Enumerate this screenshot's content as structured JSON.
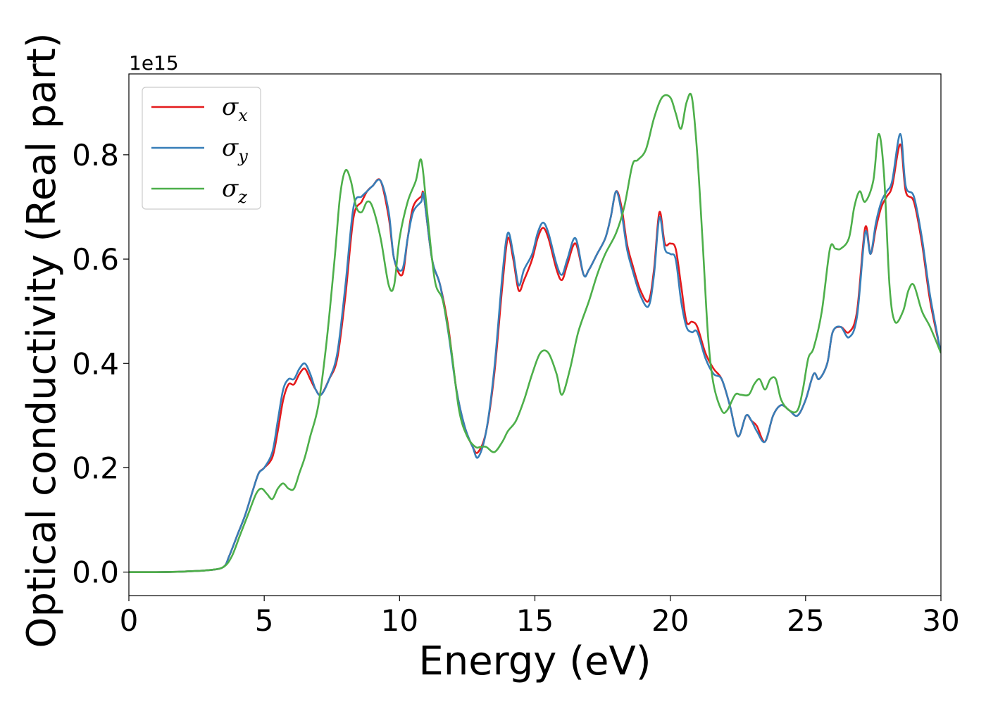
{
  "chart_data": {
    "type": "line",
    "title": "",
    "xlabel": "Energy (eV)",
    "ylabel": "Optical conductivity (Real part)",
    "y_offset_label": "1e15",
    "xlim": [
      0,
      30
    ],
    "ylim": [
      -0.045,
      0.955
    ],
    "xticks": [
      0,
      5,
      10,
      15,
      20,
      25,
      30
    ],
    "xtick_labels": [
      "0",
      "5",
      "10",
      "15",
      "20",
      "25",
      "30"
    ],
    "yticks": [
      0.0,
      0.2,
      0.4,
      0.6,
      0.8
    ],
    "ytick_labels": [
      "0.0",
      "0.2",
      "0.4",
      "0.6",
      "0.8"
    ],
    "grid": false,
    "legend_position": "upper-left",
    "series": [
      {
        "name": "σx",
        "legend_symbol": "σ",
        "legend_sub": "x",
        "color": "#e41a1c",
        "x": [
          0,
          1,
          2,
          3,
          3.5,
          3.7,
          4.0,
          4.3,
          4.6,
          4.8,
          5.0,
          5.3,
          5.5,
          5.7,
          5.9,
          6.1,
          6.3,
          6.5,
          6.7,
          6.9,
          7.1,
          7.4,
          7.7,
          8.0,
          8.3,
          8.6,
          8.8,
          9.0,
          9.3,
          9.6,
          9.8,
          10.1,
          10.3,
          10.5,
          10.8,
          10.9,
          11.2,
          11.5,
          11.8,
          12.1,
          12.4,
          12.7,
          12.9,
          13.2,
          13.5,
          13.8,
          14.0,
          14.2,
          14.4,
          14.6,
          14.9,
          15.1,
          15.3,
          15.5,
          15.8,
          16.0,
          16.2,
          16.5,
          16.8,
          17.0,
          17.3,
          17.6,
          17.8,
          18.0,
          18.2,
          18.4,
          18.6,
          18.9,
          19.2,
          19.4,
          19.6,
          19.8,
          20.0,
          20.2,
          20.4,
          20.6,
          20.8,
          21.0,
          21.3,
          21.6,
          21.9,
          22.2,
          22.5,
          22.8,
          23.0,
          23.2,
          23.5,
          23.8,
          24.1,
          24.4,
          24.7,
          25.0,
          25.3,
          25.5,
          25.8,
          26.0,
          26.3,
          26.6,
          26.9,
          27.2,
          27.4,
          27.6,
          27.8,
          28.0,
          28.2,
          28.5,
          28.7,
          29.0,
          29.3,
          29.6,
          30.0
        ],
        "values": [
          0.0,
          0.0,
          0.001,
          0.004,
          0.01,
          0.03,
          0.07,
          0.11,
          0.16,
          0.19,
          0.2,
          0.22,
          0.27,
          0.33,
          0.36,
          0.36,
          0.38,
          0.39,
          0.37,
          0.35,
          0.34,
          0.37,
          0.41,
          0.53,
          0.68,
          0.71,
          0.73,
          0.74,
          0.75,
          0.68,
          0.6,
          0.57,
          0.64,
          0.7,
          0.72,
          0.72,
          0.6,
          0.55,
          0.47,
          0.35,
          0.28,
          0.24,
          0.23,
          0.27,
          0.38,
          0.55,
          0.64,
          0.6,
          0.54,
          0.56,
          0.6,
          0.64,
          0.66,
          0.64,
          0.58,
          0.56,
          0.59,
          0.63,
          0.57,
          0.58,
          0.61,
          0.64,
          0.68,
          0.73,
          0.7,
          0.63,
          0.59,
          0.54,
          0.52,
          0.58,
          0.69,
          0.63,
          0.63,
          0.62,
          0.55,
          0.48,
          0.48,
          0.47,
          0.42,
          0.39,
          0.37,
          0.32,
          0.26,
          0.3,
          0.29,
          0.28,
          0.25,
          0.3,
          0.32,
          0.31,
          0.3,
          0.33,
          0.38,
          0.37,
          0.4,
          0.46,
          0.47,
          0.46,
          0.5,
          0.66,
          0.61,
          0.66,
          0.7,
          0.72,
          0.74,
          0.82,
          0.73,
          0.71,
          0.63,
          0.52,
          0.42
        ]
      },
      {
        "name": "σy",
        "legend_symbol": "σ",
        "legend_sub": "y",
        "color": "#377eb8",
        "x": [
          0,
          1,
          2,
          3,
          3.5,
          3.7,
          4.0,
          4.3,
          4.6,
          4.8,
          5.0,
          5.3,
          5.5,
          5.7,
          5.9,
          6.1,
          6.3,
          6.5,
          6.7,
          6.9,
          7.1,
          7.4,
          7.7,
          8.0,
          8.3,
          8.6,
          8.8,
          9.0,
          9.3,
          9.6,
          9.8,
          10.1,
          10.3,
          10.5,
          10.8,
          10.9,
          11.2,
          11.5,
          11.8,
          12.1,
          12.4,
          12.7,
          12.9,
          13.2,
          13.5,
          13.8,
          14.0,
          14.2,
          14.4,
          14.6,
          14.9,
          15.1,
          15.3,
          15.5,
          15.8,
          16.0,
          16.2,
          16.5,
          16.8,
          17.0,
          17.3,
          17.6,
          17.8,
          18.0,
          18.2,
          18.4,
          18.6,
          18.9,
          19.2,
          19.4,
          19.6,
          19.8,
          20.0,
          20.2,
          20.4,
          20.6,
          20.8,
          21.0,
          21.3,
          21.6,
          21.9,
          22.2,
          22.5,
          22.8,
          23.0,
          23.2,
          23.5,
          23.8,
          24.1,
          24.4,
          24.7,
          25.0,
          25.3,
          25.5,
          25.8,
          26.0,
          26.3,
          26.6,
          26.9,
          27.2,
          27.4,
          27.6,
          27.8,
          28.0,
          28.2,
          28.5,
          28.7,
          29.0,
          29.3,
          29.6,
          30.0
        ],
        "values": [
          0.0,
          0.0,
          0.001,
          0.004,
          0.01,
          0.03,
          0.07,
          0.11,
          0.16,
          0.19,
          0.2,
          0.23,
          0.29,
          0.35,
          0.37,
          0.37,
          0.39,
          0.4,
          0.38,
          0.35,
          0.34,
          0.37,
          0.42,
          0.55,
          0.7,
          0.72,
          0.73,
          0.74,
          0.75,
          0.69,
          0.6,
          0.58,
          0.64,
          0.69,
          0.71,
          0.72,
          0.6,
          0.55,
          0.46,
          0.35,
          0.28,
          0.24,
          0.22,
          0.27,
          0.39,
          0.57,
          0.65,
          0.61,
          0.55,
          0.58,
          0.61,
          0.65,
          0.67,
          0.65,
          0.59,
          0.57,
          0.6,
          0.64,
          0.57,
          0.58,
          0.61,
          0.64,
          0.68,
          0.73,
          0.69,
          0.62,
          0.58,
          0.53,
          0.51,
          0.57,
          0.68,
          0.62,
          0.61,
          0.6,
          0.52,
          0.47,
          0.46,
          0.46,
          0.41,
          0.38,
          0.37,
          0.32,
          0.26,
          0.3,
          0.29,
          0.27,
          0.25,
          0.3,
          0.32,
          0.31,
          0.3,
          0.33,
          0.38,
          0.37,
          0.4,
          0.46,
          0.47,
          0.45,
          0.49,
          0.65,
          0.61,
          0.67,
          0.71,
          0.73,
          0.75,
          0.84,
          0.74,
          0.72,
          0.64,
          0.53,
          0.42
        ]
      },
      {
        "name": "σz",
        "legend_symbol": "σ",
        "legend_sub": "z",
        "color": "#4daf4a",
        "x": [
          0,
          1,
          2,
          3,
          3.5,
          3.8,
          4.1,
          4.4,
          4.7,
          4.9,
          5.1,
          5.3,
          5.5,
          5.7,
          5.9,
          6.1,
          6.3,
          6.5,
          6.7,
          7.0,
          7.3,
          7.6,
          7.8,
          8.0,
          8.2,
          8.4,
          8.6,
          8.8,
          9.0,
          9.3,
          9.6,
          9.8,
          10.0,
          10.3,
          10.6,
          10.8,
          11.0,
          11.3,
          11.6,
          11.9,
          12.2,
          12.5,
          12.8,
          13.0,
          13.2,
          13.5,
          13.8,
          14.0,
          14.3,
          14.6,
          14.9,
          15.2,
          15.5,
          15.8,
          16.0,
          16.3,
          16.6,
          17.0,
          17.3,
          17.6,
          18.0,
          18.3,
          18.6,
          18.8,
          19.1,
          19.4,
          19.7,
          20.0,
          20.2,
          20.4,
          20.6,
          20.8,
          21.0,
          21.2,
          21.4,
          21.6,
          21.9,
          22.1,
          22.4,
          22.6,
          22.9,
          23.1,
          23.3,
          23.5,
          23.7,
          23.9,
          24.1,
          24.4,
          24.7,
          24.9,
          25.1,
          25.3,
          25.6,
          25.9,
          26.1,
          26.3,
          26.6,
          26.8,
          27.0,
          27.2,
          27.5,
          27.7,
          27.9,
          28.1,
          28.3,
          28.6,
          28.8,
          29.0,
          29.3,
          29.6,
          30.0
        ],
        "values": [
          0.0,
          0.0,
          0.001,
          0.004,
          0.01,
          0.03,
          0.07,
          0.11,
          0.15,
          0.16,
          0.15,
          0.14,
          0.16,
          0.17,
          0.16,
          0.16,
          0.19,
          0.22,
          0.26,
          0.32,
          0.44,
          0.6,
          0.72,
          0.77,
          0.75,
          0.7,
          0.69,
          0.71,
          0.7,
          0.64,
          0.55,
          0.55,
          0.64,
          0.71,
          0.75,
          0.79,
          0.7,
          0.56,
          0.52,
          0.43,
          0.31,
          0.26,
          0.24,
          0.24,
          0.24,
          0.23,
          0.25,
          0.27,
          0.29,
          0.33,
          0.38,
          0.42,
          0.42,
          0.38,
          0.34,
          0.39,
          0.46,
          0.52,
          0.57,
          0.61,
          0.65,
          0.7,
          0.78,
          0.79,
          0.81,
          0.87,
          0.91,
          0.91,
          0.88,
          0.85,
          0.9,
          0.91,
          0.8,
          0.63,
          0.45,
          0.36,
          0.31,
          0.31,
          0.34,
          0.34,
          0.34,
          0.36,
          0.37,
          0.35,
          0.37,
          0.37,
          0.33,
          0.31,
          0.31,
          0.35,
          0.41,
          0.43,
          0.5,
          0.62,
          0.62,
          0.62,
          0.64,
          0.7,
          0.73,
          0.71,
          0.75,
          0.84,
          0.76,
          0.55,
          0.48,
          0.5,
          0.54,
          0.55,
          0.5,
          0.47,
          0.42
        ]
      }
    ]
  }
}
